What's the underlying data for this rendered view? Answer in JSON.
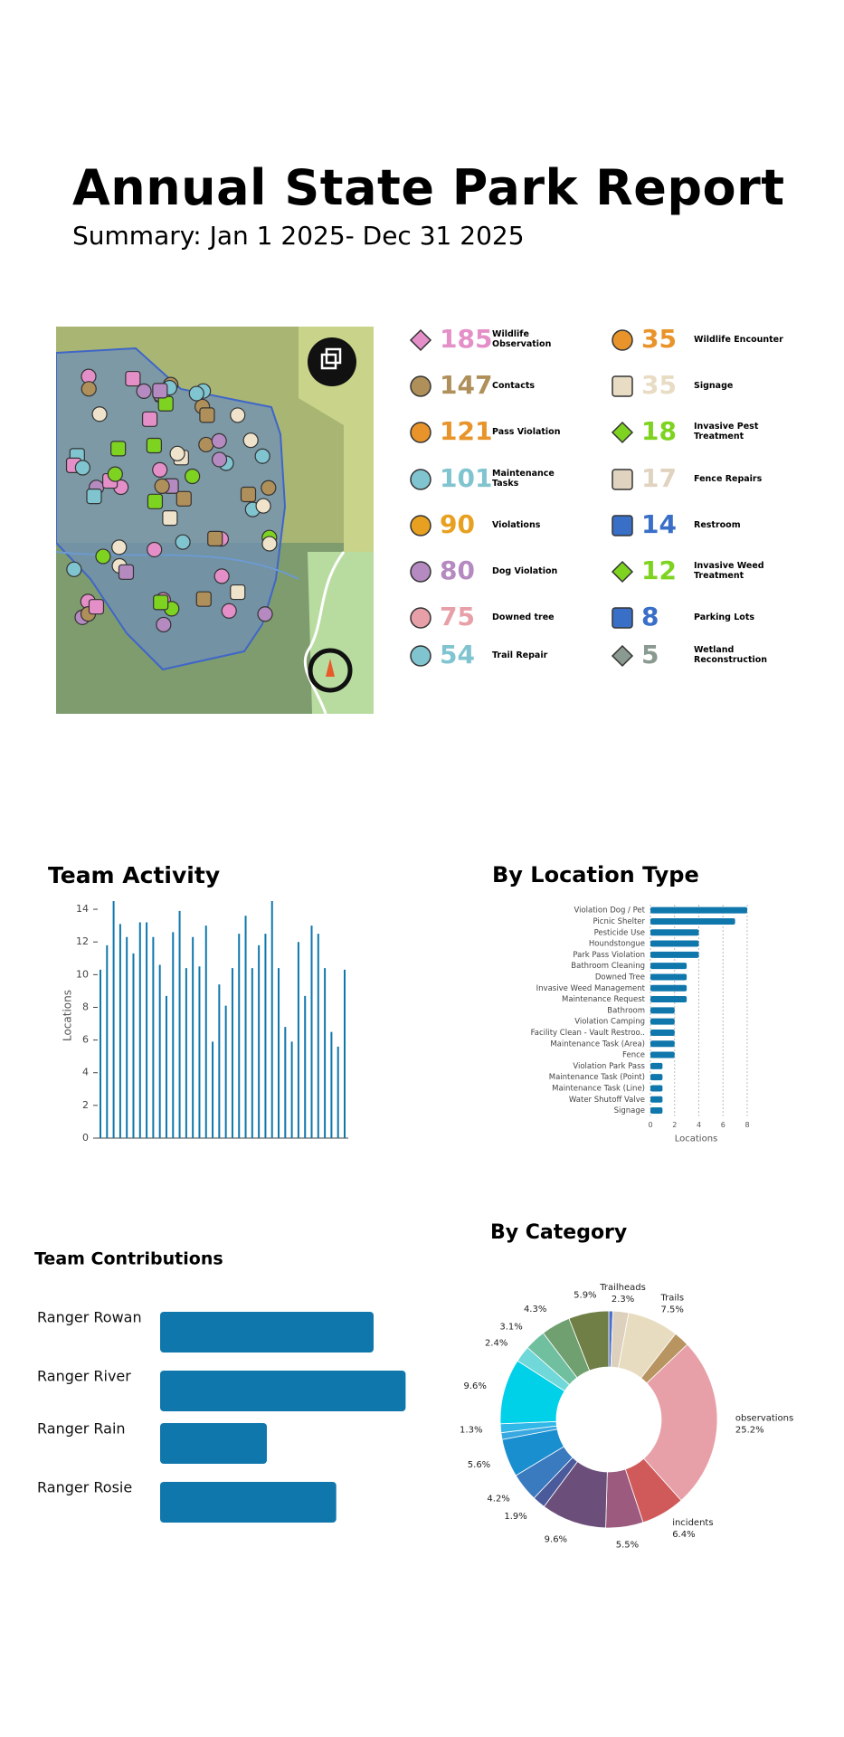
{
  "header": {
    "title": "Annual State Park Report",
    "subtitle": "Summary: Jan 1 2025- Dec 31 2025"
  },
  "stats": [
    {
      "value": 185,
      "label": "Wildlife Observation",
      "color": "#e58fc9",
      "shape": "diamond"
    },
    {
      "value": 35,
      "label": "Wildlife Encounter",
      "color": "#e8942a",
      "shape": "circle"
    },
    {
      "value": 147,
      "label": "Contacts",
      "color": "#b0905a",
      "shape": "circle"
    },
    {
      "value": 35,
      "label": "Signage",
      "color": "#e8dcc4",
      "shape": "square"
    },
    {
      "value": 121,
      "label": "Pass Violation",
      "color": "#e8942a",
      "shape": "circle"
    },
    {
      "value": 18,
      "label": "Invasive Pest Treatment",
      "color": "#7ed321",
      "shape": "diamond"
    },
    {
      "value": 101,
      "label": "Maintenance Tasks",
      "color": "#80c4d0",
      "shape": "circle"
    },
    {
      "value": 17,
      "label": "Fence Repairs",
      "color": "#e0d4c0",
      "shape": "square"
    },
    {
      "value": 90,
      "label": "Violations",
      "color": "#e8a020",
      "shape": "circle"
    },
    {
      "value": 14,
      "label": "Restroom",
      "color": "#3a6fc8",
      "shape": "square"
    },
    {
      "value": 80,
      "label": "Dog Violation",
      "color": "#b48ac0",
      "shape": "circle"
    },
    {
      "value": 12,
      "label": "Invasive Weed Treatment",
      "color": "#7ed321",
      "shape": "diamond"
    },
    {
      "value": 75,
      "label": "Downed tree",
      "color": "#e8a0a8",
      "shape": "circle"
    },
    {
      "value": 8,
      "label": "Parking Lots",
      "color": "#3a6fc8",
      "shape": "square"
    },
    {
      "value": 54,
      "label": "Trail Repair",
      "color": "#80c4d0",
      "shape": "circle"
    },
    {
      "value": 5,
      "label": "Wetland Reconstruction",
      "color": "#8a9a90",
      "shape": "diamond"
    }
  ],
  "chart_data": [
    {
      "type": "bar",
      "title": "Team Activity",
      "ylabel": "Locations",
      "color": "#0f77ac",
      "values": [
        10.3,
        11.8,
        14.5,
        13.1,
        12.3,
        11.3,
        13.2,
        13.2,
        12.3,
        10.6,
        8.7,
        12.6,
        13.9,
        10.4,
        12.3,
        10.5,
        13.0,
        5.9,
        9.4,
        8.1,
        10.4,
        12.5,
        13.6,
        10.4,
        11.8,
        12.5,
        14.5,
        10.4,
        6.8,
        5.9,
        12.0,
        8.7,
        13.0,
        12.5,
        10.4,
        6.5,
        5.6,
        10.3
      ],
      "ylim": [
        0,
        15
      ],
      "yticks": [
        0,
        2,
        4,
        6,
        8,
        10,
        12,
        14
      ]
    },
    {
      "type": "hbar",
      "title": "By Location Type",
      "xlabel": "Locations",
      "color": "#0f77ac",
      "grid": true,
      "categories": [
        "Violation Dog / Pet",
        "Picnic Shelter",
        "Pesticide Use",
        "Houndstongue",
        "Park Pass Violation",
        "Bathroom Cleaning",
        "Downed Tree",
        "Invasive Weed Management",
        "Maintenance Request",
        "Bathroom",
        "Violation Camping",
        "Facility Clean - Vault Restroo..",
        "Maintenance Task (Area)",
        "Fence",
        "Violation Park Pass",
        "Maintenance Task (Point)",
        "Maintenance Task (Line)",
        "Water Shutoff Valve",
        "Signage"
      ],
      "values": [
        8,
        7,
        4,
        4,
        4,
        3,
        3,
        3,
        3,
        2,
        2,
        2,
        2,
        2,
        1,
        1,
        1,
        1,
        1
      ],
      "xlim": [
        0,
        8.3
      ],
      "xticks": [
        0,
        2,
        4,
        6,
        8
      ]
    },
    {
      "type": "hbar-plain",
      "title": "Team Contributions",
      "color": "#0f77ac",
      "categories": [
        "Ranger Rowan",
        "Ranger River",
        "Ranger Rain",
        "Ranger Rosie"
      ],
      "values": [
        20,
        23,
        10,
        16.5
      ],
      "xlim": [
        0,
        25
      ]
    },
    {
      "type": "donut",
      "title": "By Category",
      "categories": [
        null,
        "Trailheads",
        "Trails",
        null,
        "observations",
        "incidents",
        null,
        null,
        null,
        null,
        null,
        null,
        null,
        null,
        null,
        null,
        null,
        null
      ],
      "values": [
        0.6,
        2.3,
        7.5,
        2.3,
        25.2,
        6.4,
        5.5,
        9.6,
        1.9,
        4.2,
        5.6,
        1.0,
        1.3,
        9.6,
        2.4,
        3.1,
        4.3,
        5.9
      ],
      "value_labels": [
        null,
        "2.3%",
        "7.5%",
        null,
        "25.2%",
        "6.4%",
        "5.5%",
        "9.6%",
        "1.9%",
        "4.2%",
        "5.6%",
        null,
        "1.3%",
        "9.6%",
        "2.4%",
        "3.1%",
        "4.3%",
        "5.9%"
      ],
      "colors": [
        "#4a6fd0",
        "#ddd0bd",
        "#e8dcc0",
        "#b89560",
        "#e8a0a8",
        "#d05a5a",
        "#9c5a7e",
        "#6b4f7a",
        "#4a5a9a",
        "#3a7abf",
        "#1a8fd0",
        "#3aa8e0",
        "#30b8e8",
        "#00d0e8",
        "#70d8d8",
        "#70c0a0",
        "#70a070",
        "#6f7f45"
      ]
    }
  ]
}
